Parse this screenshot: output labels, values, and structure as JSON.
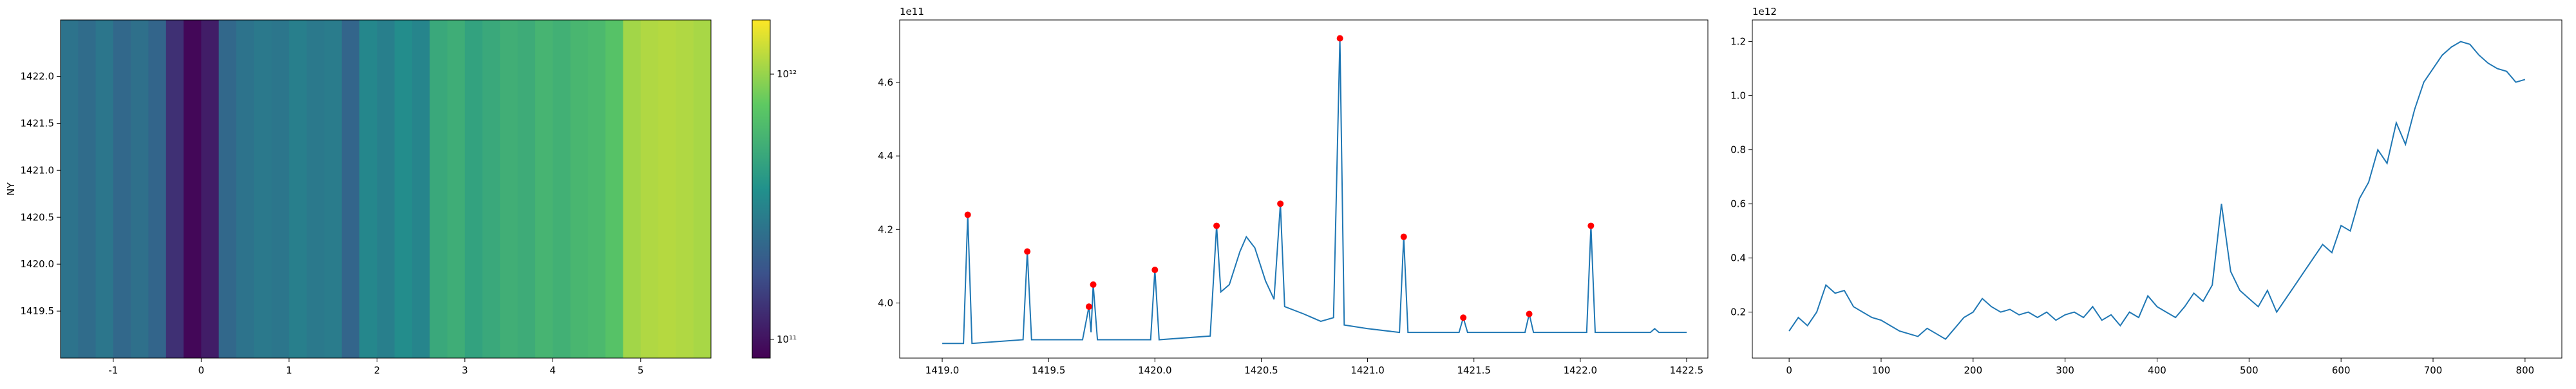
{
  "chart_data": [
    {
      "type": "heatmap",
      "ylabel": "NY",
      "x_edges": [
        -1.6,
        -1.4,
        -1.2,
        -1.0,
        -0.8,
        -0.6,
        -0.4,
        -0.2,
        0.0,
        0.2,
        0.4,
        0.6,
        0.8,
        1.0,
        1.2,
        1.4,
        1.6,
        1.8,
        2.0,
        2.2,
        2.4,
        2.6,
        2.8,
        3.0,
        3.2,
        3.4,
        3.6,
        3.8,
        4.0,
        4.2,
        4.4,
        4.6,
        4.8,
        5.0,
        5.2,
        5.4,
        5.6,
        5.8
      ],
      "values": [
        260000000000.0,
        240000000000.0,
        270000000000.0,
        230000000000.0,
        250000000000.0,
        220000000000.0,
        130000000000.0,
        90000000000.0,
        110000000000.0,
        230000000000.0,
        260000000000.0,
        280000000000.0,
        270000000000.0,
        300000000000.0,
        280000000000.0,
        290000000000.0,
        220000000000.0,
        330000000000.0,
        300000000000.0,
        350000000000.0,
        320000000000.0,
        500000000000.0,
        530000000000.0,
        460000000000.0,
        500000000000.0,
        540000000000.0,
        520000000000.0,
        580000000000.0,
        550000000000.0,
        600000000000.0,
        620000000000.0,
        700000000000.0,
        1050000000000.0,
        1120000000000.0,
        1150000000000.0,
        1120000000000.0,
        1080000000000.0
      ],
      "xlim": [
        -1.6,
        5.8
      ],
      "ylim": [
        1419.0,
        1422.6
      ],
      "xticks": [
        -1,
        0,
        1,
        2,
        3,
        4,
        5
      ],
      "yticks": [
        1419.5,
        {
          "value": 1420,
          "label": "1420.0"
        },
        1420.5,
        {
          "value": 1421,
          "label": "1421.0"
        },
        1421.5,
        {
          "value": 1422,
          "label": "1422.0"
        }
      ],
      "colormap": "viridis",
      "color_scale": "log",
      "clim": [
        85000000000.0,
        1600000000000.0
      ],
      "cticks": [
        {
          "value": 100000000000.0,
          "label": "10¹¹"
        },
        {
          "value": 1000000000000.0,
          "label": "10¹²"
        }
      ]
    },
    {
      "type": "line",
      "offset_text": "1e11",
      "color": "#1f77b4",
      "x": [
        1419.0,
        1419.1,
        1419.12,
        1419.14,
        1419.38,
        1419.4,
        1419.42,
        1419.66,
        1419.69,
        1419.7,
        1419.71,
        1419.73,
        1419.98,
        1420.0,
        1420.02,
        1420.26,
        1420.29,
        1420.31,
        1420.35,
        1420.4,
        1420.43,
        1420.47,
        1420.52,
        1420.56,
        1420.59,
        1420.61,
        1420.7,
        1420.78,
        1420.84,
        1420.87,
        1420.89,
        1421.0,
        1421.15,
        1421.17,
        1421.19,
        1421.43,
        1421.45,
        1421.47,
        1421.74,
        1421.76,
        1421.78,
        1422.03,
        1422.05,
        1422.07,
        1422.33,
        1422.35,
        1422.37,
        1422.5
      ],
      "values": [
        3.89,
        3.89,
        4.24,
        3.89,
        3.9,
        4.14,
        3.9,
        3.9,
        3.99,
        3.92,
        4.05,
        3.9,
        3.9,
        4.09,
        3.9,
        3.91,
        4.21,
        4.03,
        4.05,
        4.14,
        4.18,
        4.15,
        4.06,
        4.01,
        4.27,
        3.99,
        3.97,
        3.95,
        3.96,
        4.72,
        3.94,
        3.93,
        3.92,
        4.18,
        3.92,
        3.92,
        3.96,
        3.92,
        3.92,
        3.97,
        3.92,
        3.92,
        4.21,
        3.92,
        3.92,
        3.93,
        3.92,
        3.92
      ],
      "markers": {
        "color": "#ff0000",
        "x": [
          1419.12,
          1419.4,
          1419.69,
          1419.71,
          1420.0,
          1420.29,
          1420.59,
          1420.87,
          1421.17,
          1421.45,
          1421.76,
          1422.05
        ],
        "values": [
          4.24,
          4.14,
          3.99,
          4.05,
          4.09,
          4.21,
          4.27,
          4.72,
          4.18,
          3.96,
          3.97,
          4.21
        ]
      },
      "xlim": [
        1418.8,
        1422.6
      ],
      "ylim": [
        3.85,
        4.77
      ],
      "xticks": [
        {
          "value": 1419,
          "label": "1419.0"
        },
        1419.5,
        {
          "value": 1420,
          "label": "1420.0"
        },
        1420.5,
        {
          "value": 1421,
          "label": "1421.0"
        },
        1421.5,
        {
          "value": 1422,
          "label": "1422.0"
        },
        1422.5
      ],
      "yticks": [
        {
          "value": 4,
          "label": "4.0"
        },
        4.2,
        4.4,
        4.6
      ]
    },
    {
      "type": "line",
      "offset_text": "1e12",
      "color": "#1f77b4",
      "x": [
        0,
        10,
        20,
        30,
        40,
        50,
        60,
        70,
        80,
        90,
        100,
        110,
        120,
        130,
        140,
        150,
        160,
        170,
        180,
        190,
        200,
        210,
        220,
        230,
        240,
        250,
        260,
        270,
        280,
        290,
        300,
        310,
        320,
        330,
        340,
        350,
        360,
        370,
        380,
        390,
        400,
        410,
        420,
        430,
        440,
        450,
        460,
        470,
        480,
        490,
        500,
        510,
        520,
        530,
        540,
        550,
        560,
        570,
        580,
        590,
        600,
        610,
        620,
        630,
        640,
        650,
        660,
        670,
        680,
        690,
        700,
        710,
        720,
        730,
        740,
        750,
        760,
        770,
        780,
        790,
        800
      ],
      "values": [
        0.13,
        0.18,
        0.15,
        0.2,
        0.3,
        0.27,
        0.28,
        0.22,
        0.2,
        0.18,
        0.17,
        0.15,
        0.13,
        0.12,
        0.11,
        0.14,
        0.12,
        0.1,
        0.14,
        0.18,
        0.2,
        0.25,
        0.22,
        0.2,
        0.21,
        0.19,
        0.2,
        0.18,
        0.2,
        0.17,
        0.19,
        0.2,
        0.18,
        0.22,
        0.17,
        0.19,
        0.15,
        0.2,
        0.18,
        0.26,
        0.22,
        0.2,
        0.18,
        0.22,
        0.27,
        0.24,
        0.3,
        0.6,
        0.35,
        0.28,
        0.25,
        0.22,
        0.28,
        0.2,
        0.25,
        0.3,
        0.35,
        0.4,
        0.45,
        0.42,
        0.52,
        0.5,
        0.62,
        0.68,
        0.8,
        0.75,
        0.9,
        0.82,
        0.95,
        1.05,
        1.1,
        1.15,
        1.18,
        1.2,
        1.19,
        1.15,
        1.12,
        1.1,
        1.09,
        1.05,
        1.06
      ],
      "xlim": [
        -40,
        840
      ],
      "ylim": [
        0.03,
        1.28
      ],
      "xticks": [
        0,
        100,
        200,
        300,
        400,
        500,
        600,
        700,
        800
      ],
      "yticks": [
        0.2,
        0.4,
        0.6,
        0.8,
        {
          "value": 1,
          "label": "1.0"
        },
        1.2
      ]
    }
  ]
}
